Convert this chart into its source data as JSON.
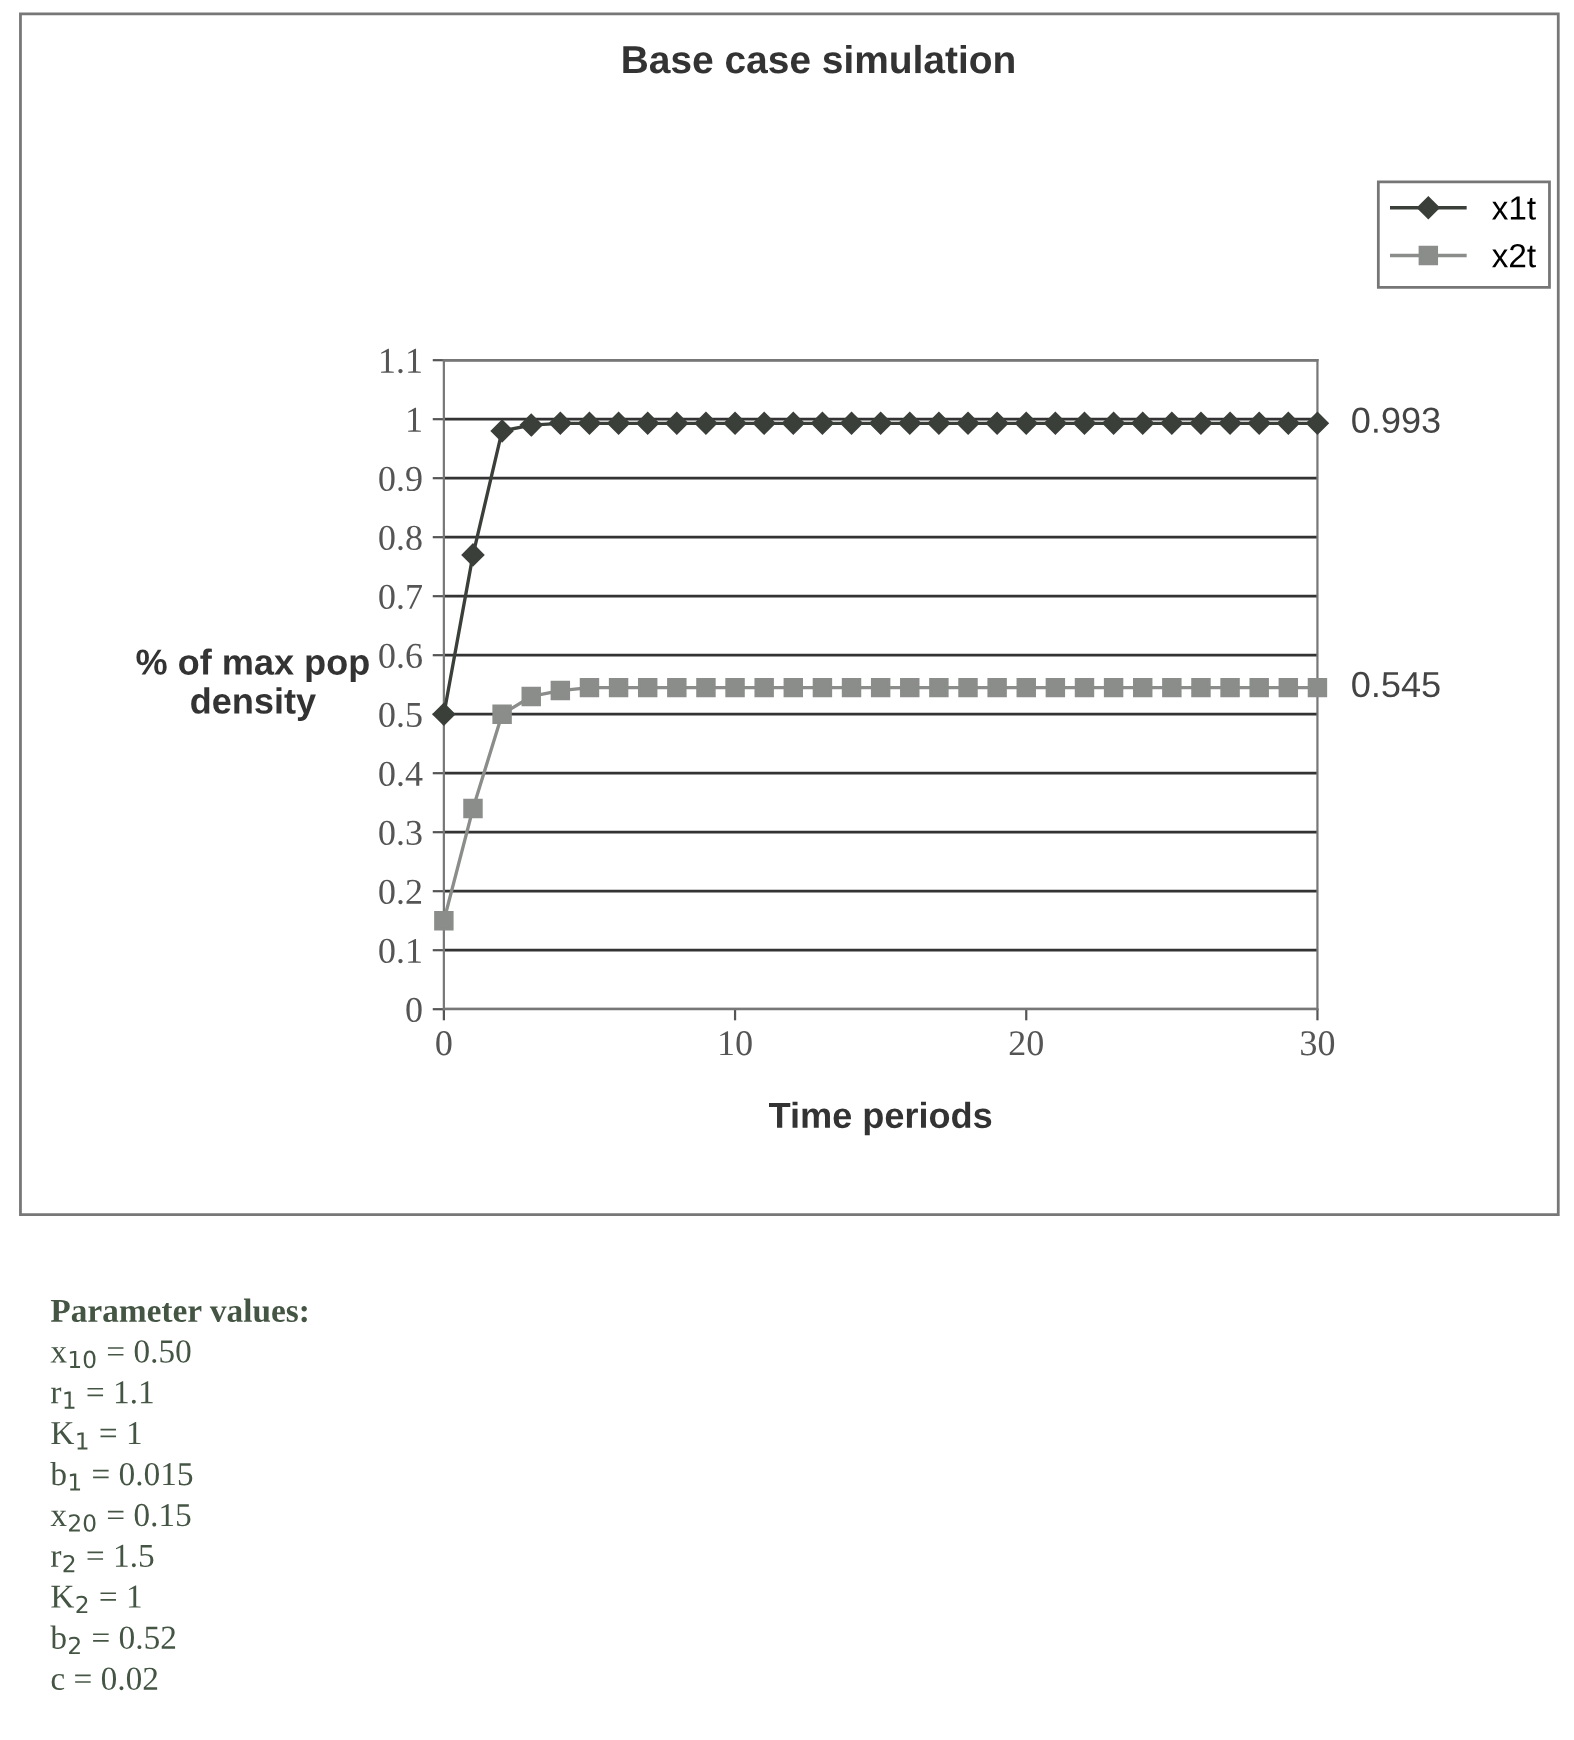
{
  "chart_data": {
    "type": "line",
    "title": "Base case simulation",
    "xlabel": "Time periods",
    "ylabel": "% of max pop\ndensity",
    "x": [
      0,
      1,
      2,
      3,
      4,
      5,
      6,
      7,
      8,
      9,
      10,
      11,
      12,
      13,
      14,
      15,
      16,
      17,
      18,
      19,
      20,
      21,
      22,
      23,
      24,
      25,
      26,
      27,
      28,
      29,
      30
    ],
    "series": [
      {
        "name": "x1t",
        "color": "#3a3f3a",
        "marker": "diamond",
        "values": [
          0.5,
          0.77,
          0.98,
          0.99,
          0.993,
          0.993,
          0.993,
          0.993,
          0.993,
          0.993,
          0.993,
          0.993,
          0.993,
          0.993,
          0.993,
          0.993,
          0.993,
          0.993,
          0.993,
          0.993,
          0.993,
          0.993,
          0.993,
          0.993,
          0.993,
          0.993,
          0.993,
          0.993,
          0.993,
          0.993,
          0.993
        ]
      },
      {
        "name": "x2t",
        "color": "#8a8d8a",
        "marker": "square",
        "values": [
          0.15,
          0.34,
          0.5,
          0.53,
          0.54,
          0.545,
          0.545,
          0.545,
          0.545,
          0.545,
          0.545,
          0.545,
          0.545,
          0.545,
          0.545,
          0.545,
          0.545,
          0.545,
          0.545,
          0.545,
          0.545,
          0.545,
          0.545,
          0.545,
          0.545,
          0.545,
          0.545,
          0.545,
          0.545,
          0.545,
          0.545
        ]
      }
    ],
    "xlim": [
      0,
      30
    ],
    "xticks": [
      0,
      10,
      20,
      30
    ],
    "ylim": [
      0,
      1.1
    ],
    "yticks": [
      0,
      0.1,
      0.2,
      0.3,
      0.4,
      0.5,
      0.6,
      0.7,
      0.8,
      0.9,
      1,
      1.1
    ],
    "grid": "y",
    "legend": "top right",
    "line_style": "solid",
    "annotations": [
      {
        "text": "0.993",
        "x": 30,
        "y": 0.993
      },
      {
        "text": "0.545",
        "x": 30,
        "y": 0.545
      },
      "Parameter values:",
      "x$_{10}$ = 0.50",
      "r$_{1}$ = 1.1",
      "K$_{1}$ = 1",
      "b$_{1}$ = 0.015",
      "x$_{20}$ = 0.15",
      "r$_{2}$ = 1.5",
      "K$_{2}$ = 1",
      "b$_{2}$ = 0.52",
      "c = 0.02"
    ]
  }
}
